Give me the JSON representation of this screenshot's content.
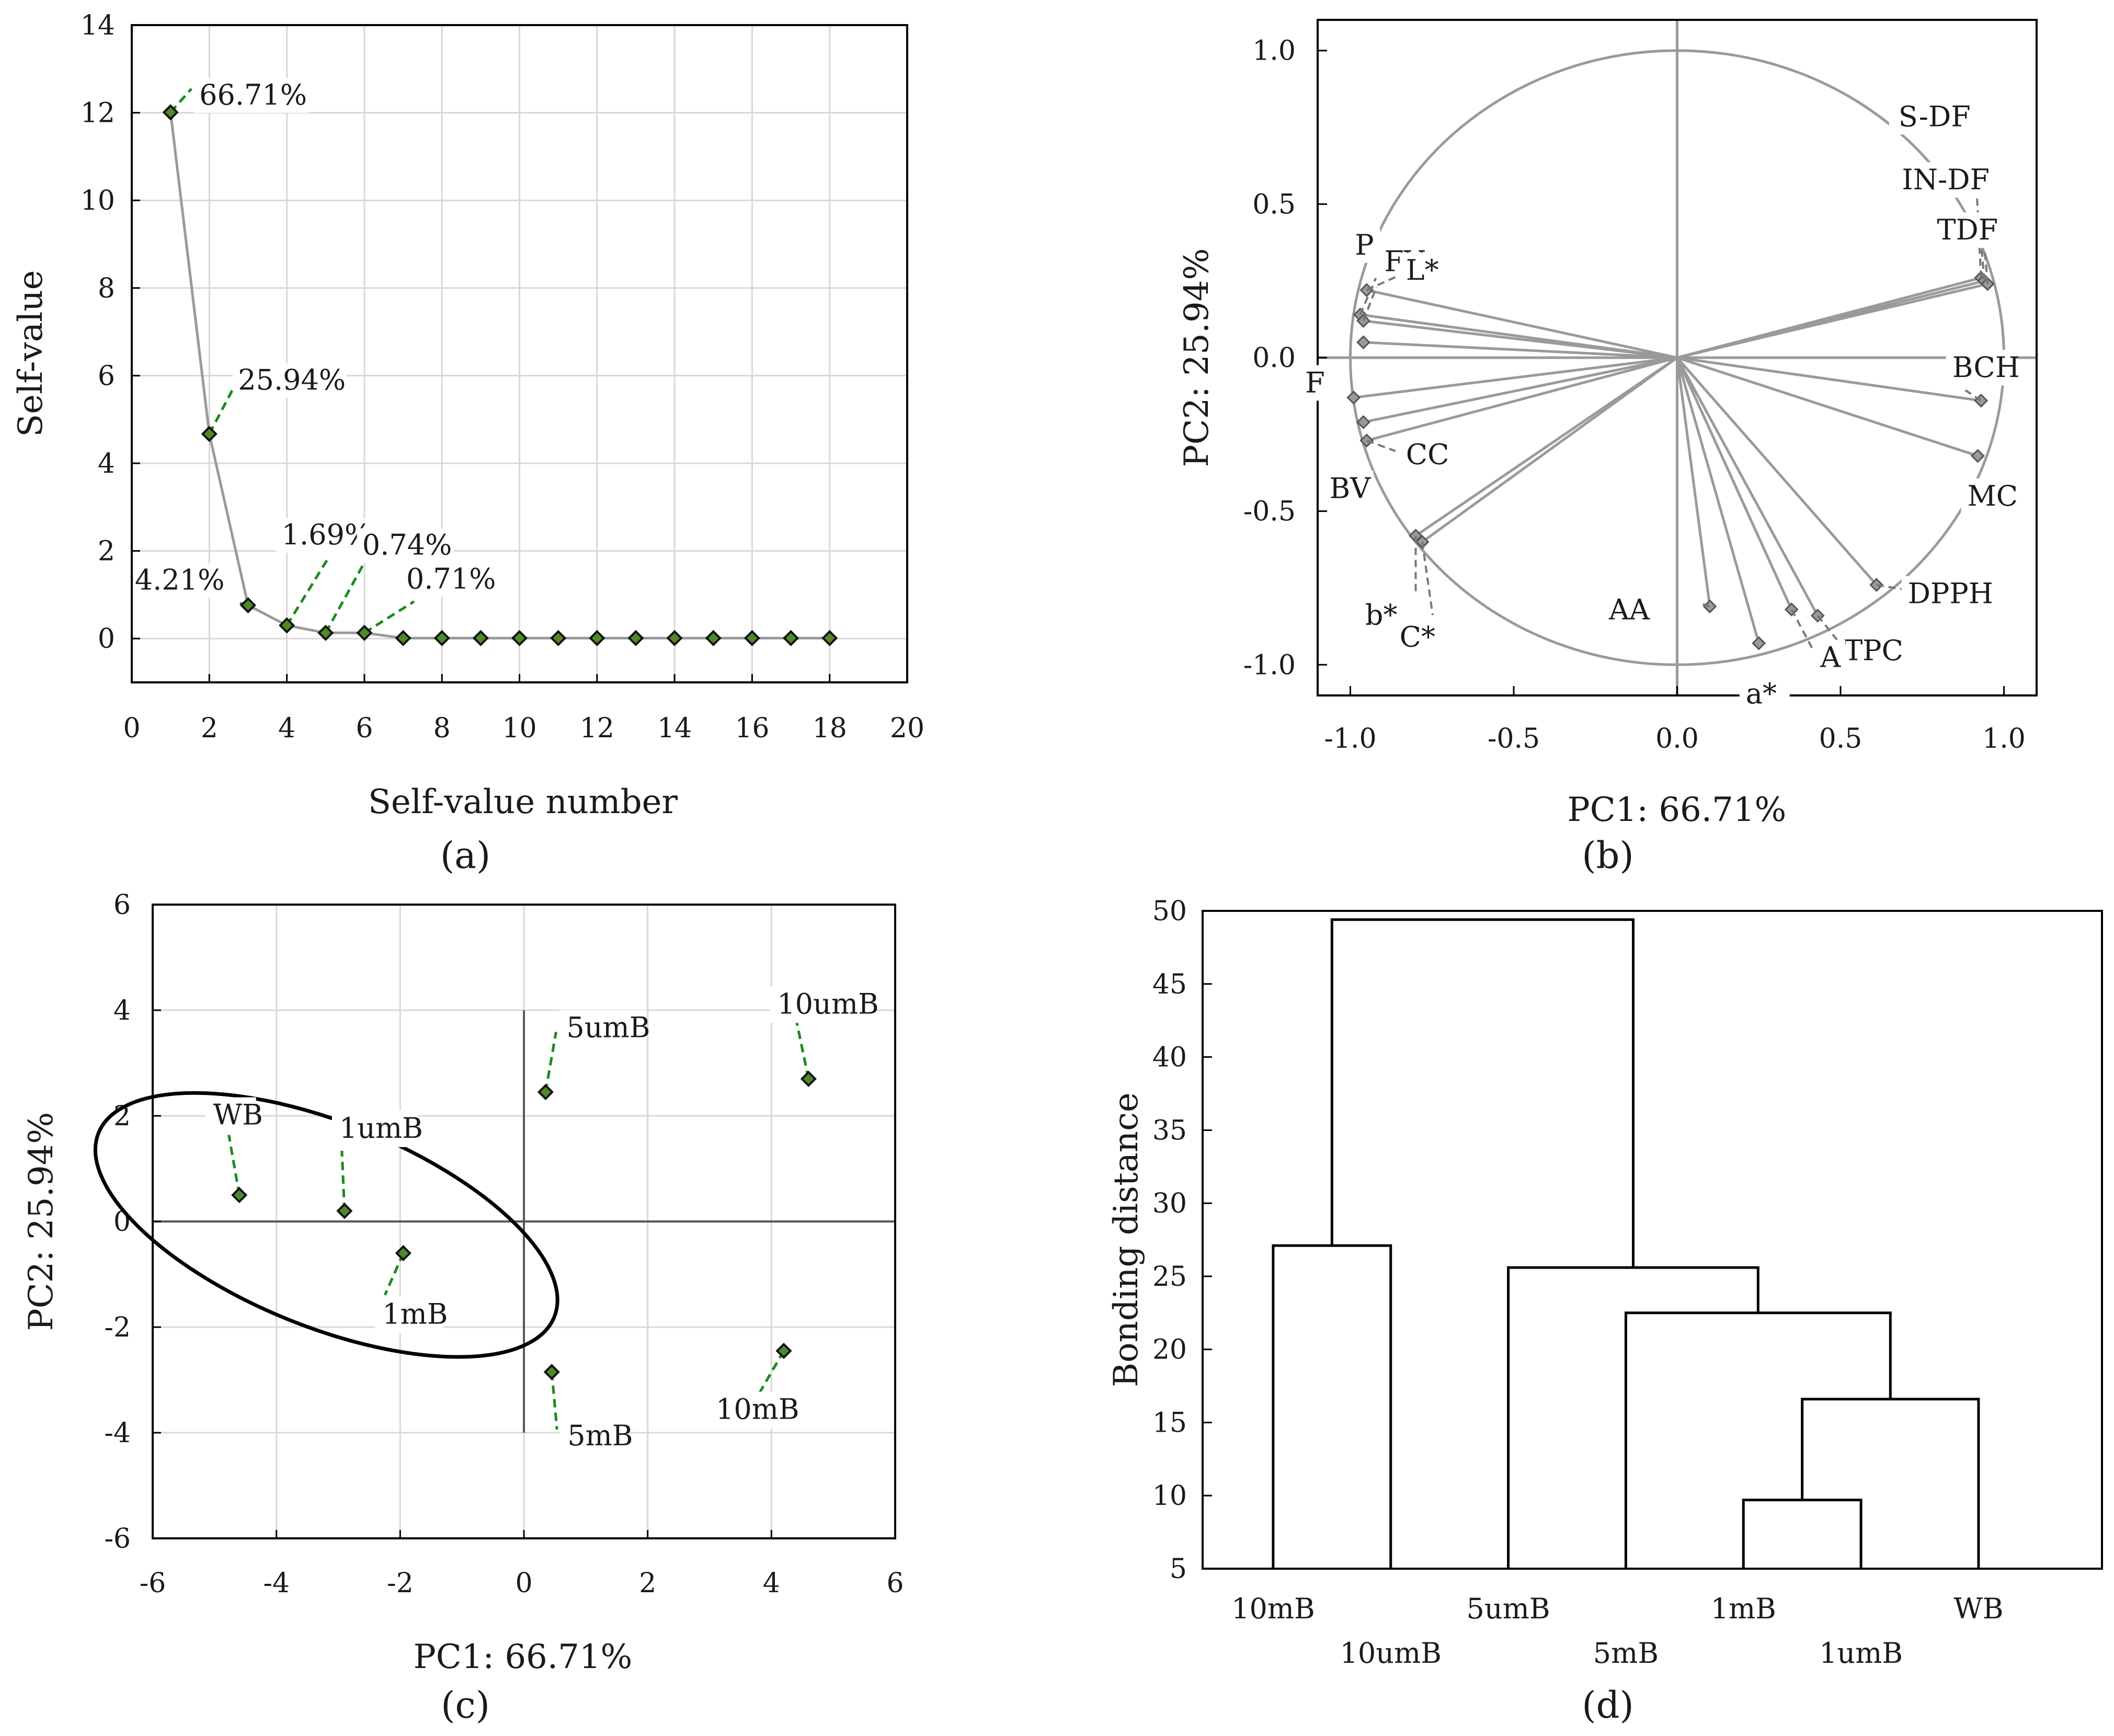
{
  "panels": [
    {
      "id": "a",
      "label": "(a)",
      "chart_data": {
        "type": "line",
        "xlabel": "Self-value number",
        "ylabel": "Self-value",
        "xlim": [
          0,
          20
        ],
        "ylim": [
          -1,
          14
        ],
        "xticks": [
          0,
          2,
          4,
          6,
          8,
          10,
          12,
          14,
          16,
          18,
          20
        ],
        "yticks": [
          0,
          2,
          4,
          6,
          8,
          10,
          12,
          14
        ],
        "grid": true,
        "x": [
          1,
          2,
          3,
          4,
          5,
          6,
          7,
          8,
          9,
          10,
          11,
          12,
          13,
          14,
          15,
          16,
          17,
          18
        ],
        "y": [
          12.01,
          4.67,
          0.76,
          0.3,
          0.13,
          0.13,
          0.01,
          0.01,
          0.01,
          0.01,
          0.01,
          0.01,
          0.01,
          0.01,
          0.01,
          0.01,
          0.01,
          0.01
        ],
        "annotations": [
          {
            "text": "66.71%",
            "x": 1,
            "y": 12.01
          },
          {
            "text": "25.94%",
            "x": 2,
            "y": 4.67
          },
          {
            "text": "4.21%",
            "x": 3,
            "y": 0.76
          },
          {
            "text": "1.69%",
            "x": 4,
            "y": 0.3
          },
          {
            "text": "0.74%",
            "x": 5,
            "y": 0.13
          },
          {
            "text": "0.71%",
            "x": 6,
            "y": 0.13
          }
        ]
      }
    },
    {
      "id": "b",
      "label": "(b)",
      "chart_data": {
        "type": "scatter",
        "xlabel": "PC1: 66.71%",
        "ylabel": "PC2: 25.94%",
        "xlim": [
          -1.1,
          1.1
        ],
        "ylim": [
          -1.1,
          1.1
        ],
        "xticks": [
          -1.0,
          -0.5,
          0.0,
          0.5,
          1.0
        ],
        "yticks": [
          1.0,
          0.5,
          0.0,
          -0.5,
          -1.0
        ],
        "grid": false,
        "unit_circle": true,
        "vectors": [
          {
            "label": "S-DF",
            "x": 0.93,
            "y": 0.26
          },
          {
            "label": "IN-DF",
            "x": 0.94,
            "y": 0.25
          },
          {
            "label": "TDF",
            "x": 0.95,
            "y": 0.24
          },
          {
            "label": "BCH",
            "x": 0.93,
            "y": -0.14
          },
          {
            "label": "MC",
            "x": 0.92,
            "y": -0.32
          },
          {
            "label": "DPPH",
            "x": 0.61,
            "y": -0.74
          },
          {
            "label": "TPC",
            "x": 0.43,
            "y": -0.84
          },
          {
            "label": "A",
            "x": 0.35,
            "y": -0.82
          },
          {
            "label": "a*",
            "x": 0.25,
            "y": -0.93
          },
          {
            "label": "AA",
            "x": 0.1,
            "y": -0.81
          },
          {
            "label": "b*",
            "x": -0.8,
            "y": -0.58
          },
          {
            "label": "C*",
            "x": -0.78,
            "y": -0.6
          },
          {
            "label": "CC",
            "x": -0.95,
            "y": -0.27
          },
          {
            "label": "BV",
            "x": -0.96,
            "y": -0.21
          },
          {
            "label": "F",
            "x": -0.99,
            "y": -0.13
          },
          {
            "label": "P",
            "x": -0.97,
            "y": 0.14
          },
          {
            "label": "FV",
            "x": -0.96,
            "y": 0.12
          },
          {
            "label": "L*",
            "x": -0.95,
            "y": 0.22
          },
          {
            "label": "",
            "x": -0.96,
            "y": 0.05
          }
        ]
      }
    },
    {
      "id": "c",
      "label": "(c)",
      "chart_data": {
        "type": "scatter",
        "xlabel": "PC1: 66.71%",
        "ylabel": "PC2: 25.94%",
        "xlim": [
          -6,
          6
        ],
        "ylim": [
          -6,
          6
        ],
        "xticks": [
          -6,
          -4,
          -2,
          0,
          2,
          4,
          6
        ],
        "yticks": [
          6,
          4,
          2,
          0,
          -2,
          -4,
          -6
        ],
        "grid": true,
        "points": [
          {
            "label": "WB",
            "x": -4.6,
            "y": 0.5
          },
          {
            "label": "1umB",
            "x": -2.9,
            "y": 0.2
          },
          {
            "label": "1mB",
            "x": -1.95,
            "y": -0.6
          },
          {
            "label": "5umB",
            "x": 0.35,
            "y": 2.45
          },
          {
            "label": "10umB",
            "x": 4.6,
            "y": 2.7
          },
          {
            "label": "5mB",
            "x": 0.45,
            "y": -2.85
          },
          {
            "label": "10mB",
            "x": 4.2,
            "y": -2.45
          }
        ],
        "ellipse_group": [
          "WB",
          "1umB",
          "1mB"
        ]
      }
    },
    {
      "id": "d",
      "label": "(d)",
      "chart_data": {
        "type": "dendrogram",
        "ylabel": "Bonding distance",
        "ylim": [
          5,
          50
        ],
        "yticks": [
          5,
          10,
          15,
          20,
          25,
          30,
          35,
          40,
          45,
          50
        ],
        "grid": false,
        "leaves": [
          "10mB",
          "10umB",
          "5umB",
          "5mB",
          "1mB",
          "1umB",
          "WB"
        ],
        "merges": [
          {
            "left": "1mB",
            "right": "1umB",
            "height": 9.7
          },
          {
            "left": "1mB+1umB",
            "right": "WB",
            "height": 16.6
          },
          {
            "left": "5mB",
            "right": "1mB+1umB+WB",
            "height": 22.5
          },
          {
            "left": "5umB",
            "right": "5mB+1mB+1umB+WB",
            "height": 25.6
          },
          {
            "left": "10mB",
            "right": "10umB",
            "height": 27.1
          },
          {
            "left": "10mB+10umB",
            "right": "5umB+5mB+1mB+1umB+WB",
            "height": 49.4
          }
        ]
      }
    }
  ]
}
